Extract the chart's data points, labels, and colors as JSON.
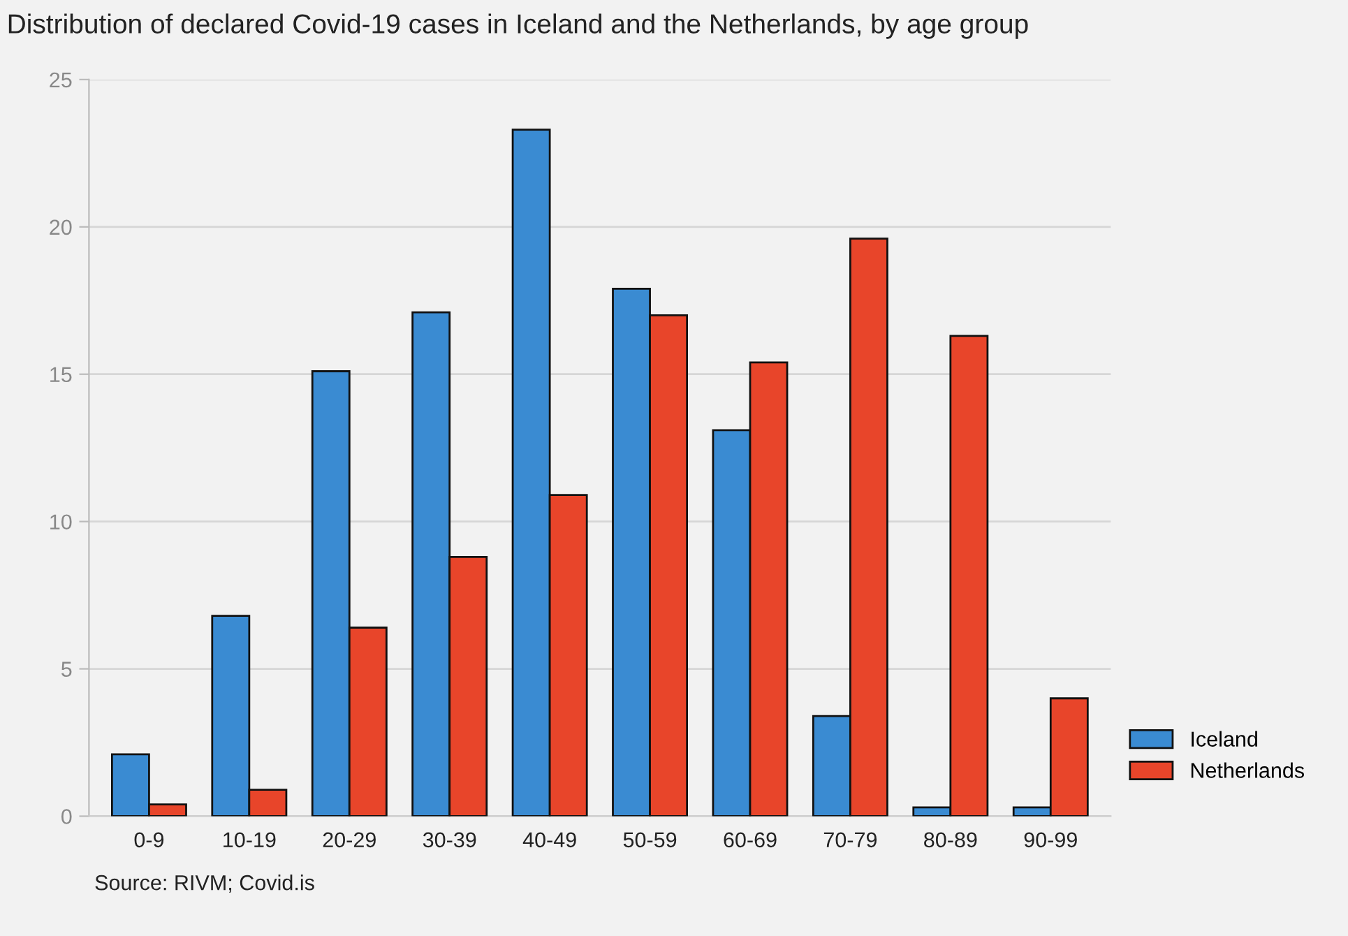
{
  "chart_data": {
    "type": "bar",
    "title": "Distribution of declared Covid-19 cases in Iceland and the Netherlands, by age group",
    "categories": [
      "0-9",
      "10-19",
      "20-29",
      "30-39",
      "40-49",
      "50-59",
      "60-69",
      "70-79",
      "80-89",
      "90-99"
    ],
    "series": [
      {
        "name": "Iceland",
        "color": "#3a8bd2",
        "values": [
          2.1,
          6.8,
          15.1,
          17.1,
          23.3,
          17.9,
          13.1,
          3.4,
          0.3,
          0.3
        ]
      },
      {
        "name": "Netherlands",
        "color": "#e8452a",
        "values": [
          0.4,
          0.9,
          6.4,
          8.8,
          10.9,
          17.0,
          15.4,
          19.6,
          16.3,
          4.0
        ]
      }
    ],
    "ylim": [
      0,
      25
    ],
    "yticks": [
      0,
      5,
      10,
      15,
      20,
      25
    ],
    "grid": "y",
    "legend": "bottom right",
    "annotations": [
      "Source: RIVM; Covid.is"
    ]
  }
}
